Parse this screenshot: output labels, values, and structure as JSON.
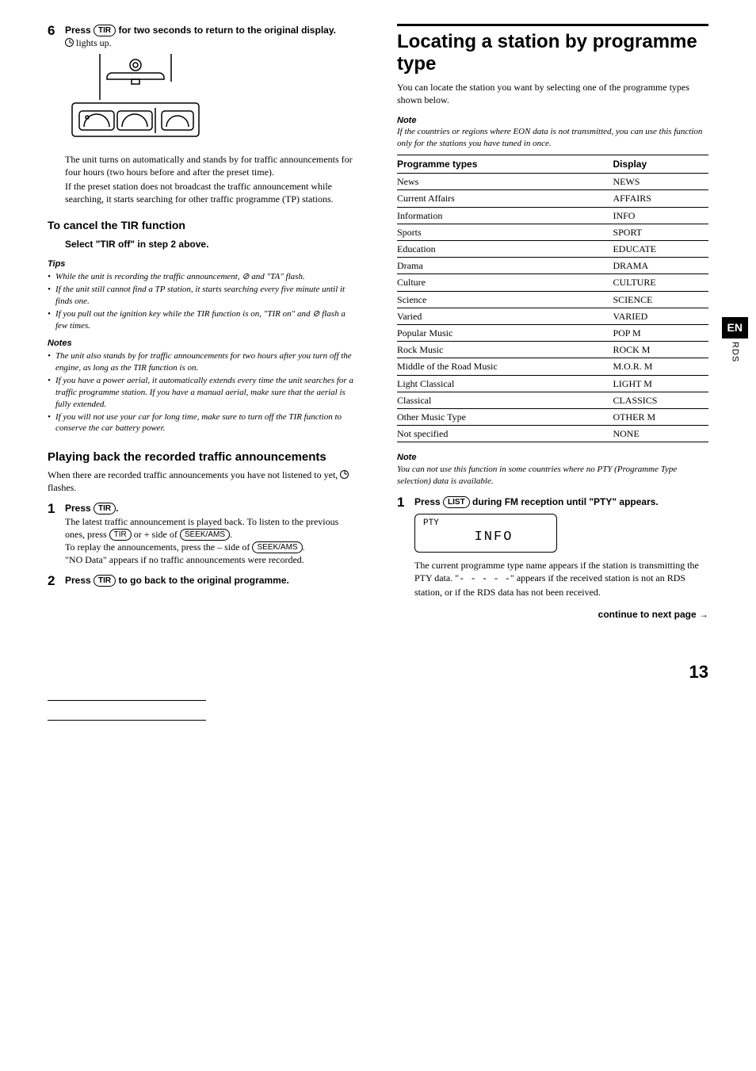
{
  "left": {
    "step6": {
      "num": "6",
      "head_a": "Press ",
      "key": "TIR",
      "head_b": " for two seconds to return to the original display.",
      "lights": " lights up."
    },
    "para1": "The unit turns on automatically and stands by for traffic announcements for four hours (two hours before and after the preset time).",
    "para2": "If the preset station does not broadcast the traffic announcement while searching, it starts searching for other traffic programme (TP) stations.",
    "cancel_h": "To cancel the TIR function",
    "cancel_step": "Select \"TIR off\" in step 2 above.",
    "tips_h": "Tips",
    "tips": [
      "While the unit is recording the traffic announcement, ⊘ and \"TA\" flash.",
      "If the unit still cannot find a TP station, it starts searching every five minute until it finds one.",
      "If you pull out the ignition key while the TIR function is on, \"TIR on\" and ⊘ flash a few times."
    ],
    "notes_h": "Notes",
    "notes": [
      "The unit also stands by for traffic announcements for two hours after you turn off the engine, as long as the TIR function is on.",
      "If you have a power aerial, it automatically extends every time the unit searches for a traffic programme station. If you have a manual aerial, make sure that the aerial is fully extended.",
      "If you will not use your car for long time, make sure to turn off the TIR function to conserve the car battery power."
    ],
    "play_h": "Playing back the recorded traffic announcements",
    "play_p_a": "When there are recorded traffic announcements you have not listened to yet, ",
    "play_p_b": " flashes.",
    "step1": {
      "num": "1",
      "head_a": "Press ",
      "key": "TIR",
      "head_b": ".",
      "body_a": "The latest traffic announcement is played back. To listen to the previous ones, press ",
      "key2": "TIR",
      "body_b": " or + side of ",
      "key3": "SEEK/AMS",
      "body_c": ".",
      "body_d": "To replay the announcements, press the – side of ",
      "key4": "SEEK/AMS",
      "body_e": ".",
      "body_f": "\"NO Data\" appears if no traffic announcements were recorded."
    },
    "step2": {
      "num": "2",
      "head_a": "Press ",
      "key": "TIR",
      "head_b": " to go back to the original programme."
    }
  },
  "right": {
    "title": "Locating a station by programme type",
    "intro": "You can locate the station you want by selecting one of the programme types shown below.",
    "note1_h": "Note",
    "note1": "If the countries or regions where EON data is not transmitted, you can use this function only for the stations you have tuned in once.",
    "table": {
      "h1": "Programme types",
      "h2": "Display",
      "rows": [
        [
          "News",
          "NEWS"
        ],
        [
          "Current Affairs",
          "AFFAIRS"
        ],
        [
          "Information",
          "INFO"
        ],
        [
          "Sports",
          "SPORT"
        ],
        [
          "Education",
          "EDUCATE"
        ],
        [
          "Drama",
          "DRAMA"
        ],
        [
          "Culture",
          "CULTURE"
        ],
        [
          "Science",
          "SCIENCE"
        ],
        [
          "Varied",
          "VARIED"
        ],
        [
          "Popular Music",
          "POP M"
        ],
        [
          "Rock Music",
          "ROCK M"
        ],
        [
          "Middle of the Road Music",
          "M.O.R. M"
        ],
        [
          "Light Classical",
          "LIGHT M"
        ],
        [
          "Classical",
          "CLASSICS"
        ],
        [
          "Other Music Type",
          "OTHER M"
        ],
        [
          "Not specified",
          "NONE"
        ]
      ]
    },
    "note2_h": "Note",
    "note2": "You can not use this function in some countries where no PTY (Programme Type selection) data is available.",
    "rstep1": {
      "num": "1",
      "head_a": "Press ",
      "key": "LIST",
      "head_b": " during FM reception until \"PTY\" appears."
    },
    "lcd": {
      "top": "PTY",
      "big": "INFO"
    },
    "rbody_a": "The current programme type name appears if the station is transmitting the PTY data. \"",
    "rbody_dash": "- - - - -",
    "rbody_b": "\" appears if the received station is not an RDS station, or if the RDS data has not been received.",
    "cont": "continue to next page →",
    "tab": "EN",
    "rds": "RDS"
  },
  "pagenum": "13"
}
